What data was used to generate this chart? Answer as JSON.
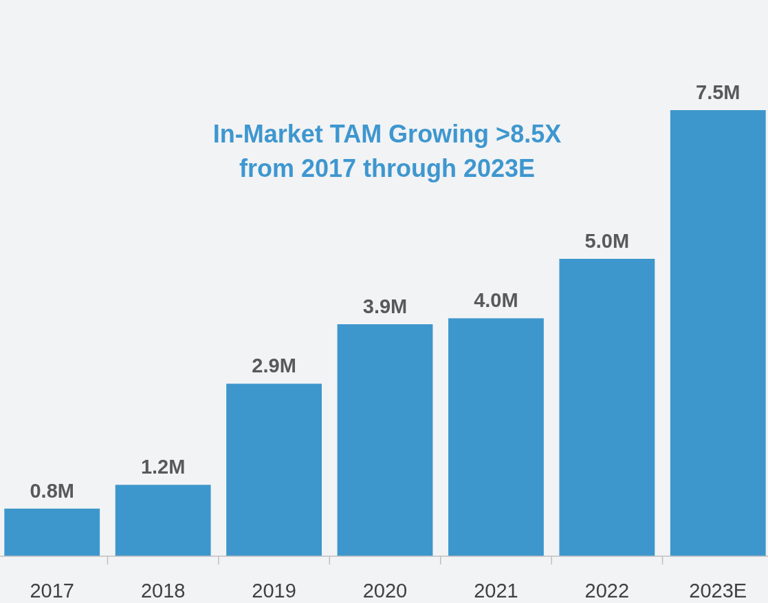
{
  "chart_data": {
    "type": "bar",
    "title": "In-Market TAM Growing >8.5X from 2017 through 2023E",
    "categories": [
      "2017",
      "2018",
      "2019",
      "2020",
      "2021",
      "2022",
      "2023E"
    ],
    "values": [
      0.8,
      1.2,
      2.9,
      3.9,
      4.0,
      5.0,
      7.5
    ],
    "value_labels": [
      "0.8M",
      "1.2M",
      "2.9M",
      "3.9M",
      "4.0M",
      "5.0M",
      "7.5M"
    ],
    "color": "#3d97cc"
  }
}
